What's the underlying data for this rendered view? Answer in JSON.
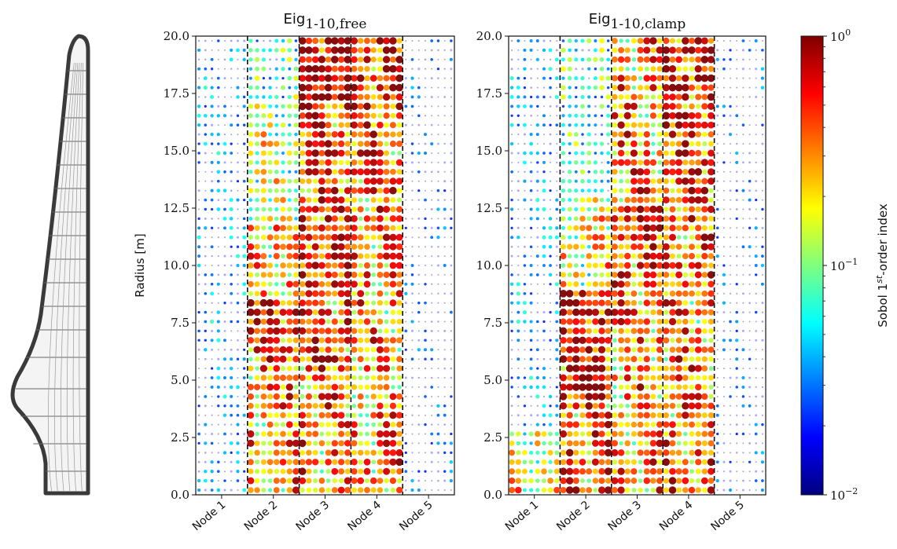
{
  "chart_data": [
    {
      "type": "scatter",
      "title_main": "Eig",
      "title_sub": "1-10,free",
      "ylabel": "Radius [m]",
      "ylim": [
        0,
        20
      ],
      "yticks": [
        "0.0",
        "2.5",
        "5.0",
        "7.5",
        "10.0",
        "12.5",
        "15.0",
        "17.5",
        "20.0"
      ],
      "categories": [
        "Node 1",
        "Node 2",
        "Node 3",
        "Node 4",
        "Node 5"
      ],
      "columns_per_node": 8,
      "radial_stations": 49,
      "log_color_scale": true,
      "node_level_profiles": [
        {
          "name": "Node 1",
          "levels": [
            [
              0,
              20,
              0.02
            ]
          ]
        },
        {
          "name": "Node 2",
          "levels": [
            [
              0,
              4,
              0.25
            ],
            [
              4,
              6,
              0.35
            ],
            [
              6,
              8.5,
              0.5
            ],
            [
              8.5,
              12,
              0.2
            ],
            [
              12,
              17,
              0.12
            ],
            [
              17,
              20,
              0.06
            ]
          ]
        },
        {
          "name": "Node 3",
          "levels": [
            [
              0,
              4,
              0.3
            ],
            [
              4,
              9,
              0.4
            ],
            [
              9,
              12,
              0.5
            ],
            [
              12,
              17,
              0.45
            ],
            [
              17,
              20,
              0.9
            ]
          ]
        },
        {
          "name": "Node 4",
          "levels": [
            [
              0,
              4,
              0.3
            ],
            [
              4,
              9,
              0.25
            ],
            [
              9,
              13,
              0.3
            ],
            [
              13,
              17,
              0.4
            ],
            [
              17,
              20,
              0.55
            ]
          ]
        },
        {
          "name": "Node 5",
          "levels": [
            [
              0,
              20,
              0.012
            ]
          ]
        }
      ]
    },
    {
      "type": "scatter",
      "title_main": "Eig",
      "title_sub": "1-10,clamp",
      "ylim": [
        0,
        20
      ],
      "yticks": [
        "0.0",
        "2.5",
        "5.0",
        "7.5",
        "10.0",
        "12.5",
        "15.0",
        "17.5",
        "20.0"
      ],
      "categories": [
        "Node 1",
        "Node 2",
        "Node 3",
        "Node 4",
        "Node 5"
      ],
      "columns_per_node": 8,
      "radial_stations": 49,
      "log_color_scale": true,
      "node_level_profiles": [
        {
          "name": "Node 1",
          "levels": [
            [
              0,
              3,
              0.15
            ],
            [
              3,
              20,
              0.02
            ]
          ]
        },
        {
          "name": "Node 2",
          "levels": [
            [
              0,
              4,
              0.35
            ],
            [
              4,
              9,
              0.6
            ],
            [
              9,
              13,
              0.15
            ],
            [
              13,
              20,
              0.05
            ]
          ]
        },
        {
          "name": "Node 3",
          "levels": [
            [
              0,
              4,
              0.25
            ],
            [
              4,
              9,
              0.3
            ],
            [
              9,
              13,
              0.45
            ],
            [
              13,
              17,
              0.3
            ],
            [
              17,
              20,
              0.25
            ]
          ]
        },
        {
          "name": "Node 4",
          "levels": [
            [
              0,
              4,
              0.35
            ],
            [
              4,
              9,
              0.3
            ],
            [
              9,
              13,
              0.35
            ],
            [
              13,
              17,
              0.45
            ],
            [
              17,
              20,
              0.55
            ]
          ]
        },
        {
          "name": "Node 5",
          "levels": [
            [
              0,
              20,
              0.012
            ]
          ]
        }
      ]
    }
  ],
  "colorbar": {
    "label_prefix": "Sobol 1",
    "label_sup": "st",
    "label_suffix": "-order index",
    "ticks": [
      {
        "base": "10",
        "exp": "0",
        "value": 1.0
      },
      {
        "base": "10",
        "exp": "−1",
        "value": 0.1
      },
      {
        "base": "10",
        "exp": "−2",
        "value": 0.01
      }
    ],
    "range": [
      0.01,
      1.0
    ],
    "colormap": [
      "#00007f",
      "#0000ff",
      "#007fff",
      "#00ffff",
      "#7fff7f",
      "#ffff00",
      "#ff7f00",
      "#ff0000",
      "#7f0000"
    ]
  },
  "blade_icon": {
    "name": "wind-turbine-blade"
  }
}
